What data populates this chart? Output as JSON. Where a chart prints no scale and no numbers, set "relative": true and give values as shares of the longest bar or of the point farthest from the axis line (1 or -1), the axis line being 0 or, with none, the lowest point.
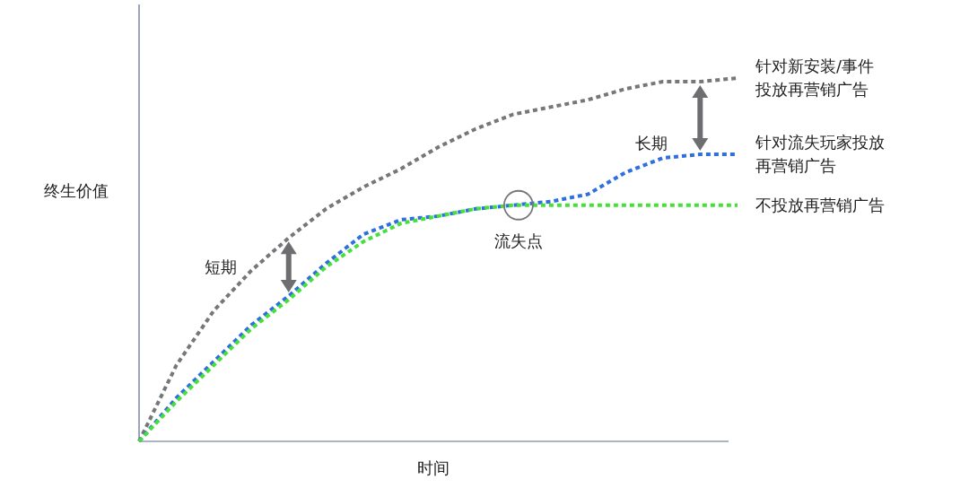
{
  "chart_data": {
    "type": "line",
    "relative": true,
    "xlabel": "时间",
    "ylabel": "终生价值",
    "line_style": "dotted",
    "marker": "none",
    "categories": [
      null,
      null,
      null,
      null,
      null,
      null,
      null,
      null,
      null,
      null,
      null,
      null,
      null,
      null,
      null,
      null,
      null
    ],
    "series": [
      {
        "name": "针对新安装/事件投放再营销广告",
        "color": "#75777b",
        "values": [
          0,
          0.21,
          0.36,
          0.47,
          0.56,
          0.64,
          0.7,
          0.75,
          0.81,
          0.86,
          0.9,
          0.92,
          0.94,
          0.97,
          0.99,
          0.99,
          1
        ]
      },
      {
        "name": "针对流失玩家投放再营销广告",
        "color": "#2f6fe0",
        "values": [
          0,
          0.12,
          0.22,
          0.32,
          0.4,
          0.49,
          0.57,
          0.61,
          0.62,
          0.64,
          0.65,
          0.66,
          0.68,
          0.74,
          0.78,
          0.79,
          0.79
        ]
      },
      {
        "name": "不投放再营销广告",
        "color": "#45e03a",
        "values": [
          0,
          0.11,
          0.21,
          0.31,
          0.39,
          0.48,
          0.55,
          0.6,
          0.62,
          0.64,
          0.65,
          0.65,
          0.65,
          0.65,
          0.65,
          0.65,
          0.65
        ]
      }
    ],
    "annotations": [
      "短期",
      "长期",
      "流失点"
    ]
  }
}
